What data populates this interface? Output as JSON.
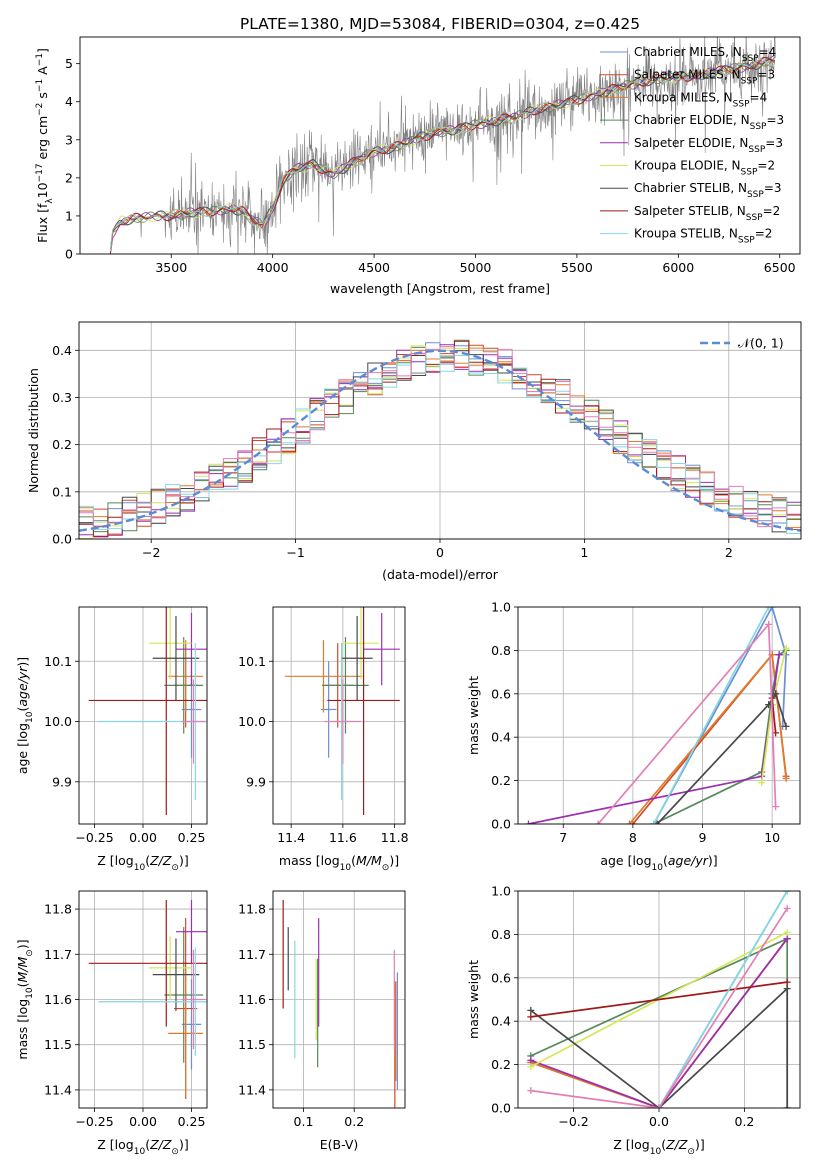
{
  "figure": {
    "title": "PLATE=1380, MJD=53084, FIBERID=0304, z=0.425"
  },
  "colors": {
    "data": "#808080",
    "Chabrier MILES": "#6b8fd6",
    "Salpeter MILES": "#d14a28",
    "Kroupa MILES": "#e07b2c",
    "Chabrier ELODIE": "#55885a",
    "Salpeter ELODIE": "#9b2fb0",
    "Kroupa ELODIE": "#d6e65a",
    "Chabrier STELIB": "#484848",
    "Salpeter STELIB": "#a11a1a",
    "Kroupa STELIB": "#85d8e2",
    "Pink": "#e37fb5",
    "normal": "#5b8bd8"
  },
  "chart_data": [
    {
      "id": "spectrum",
      "type": "line",
      "xlabel": "wavelength [Angstrom, rest frame]",
      "ylabel_parts": [
        "Flux [f",
        "λ",
        "10",
        "−17",
        " erg cm",
        "−2",
        " s",
        "−1",
        " A",
        "−1",
        "]"
      ],
      "xlim": [
        3050,
        6600
      ],
      "ylim": [
        0,
        5.7
      ],
      "xticks": [
        "3500",
        "4000",
        "4500",
        "5000",
        "5500",
        "6000",
        "6500"
      ],
      "xtick_values": [
        3500,
        4000,
        4500,
        5000,
        5500,
        6000,
        6500
      ],
      "yticks": [
        "0",
        "1",
        "2",
        "3",
        "4",
        "5"
      ],
      "ytick_values": [
        0,
        1,
        2,
        3,
        4,
        5
      ],
      "legend_position": "upper-right",
      "legend": [
        {
          "name": "Chabrier MILES, N",
          "sub": "SSP",
          "suffix": "=4"
        },
        {
          "name": "Salpeter MILES, N",
          "sub": "SSP",
          "suffix": "=3"
        },
        {
          "name": "Kroupa MILES, N",
          "sub": "SSP",
          "suffix": "=4"
        },
        {
          "name": "Chabrier ELODIE, N",
          "sub": "SSP",
          "suffix": "=3"
        },
        {
          "name": "Salpeter ELODIE, N",
          "sub": "SSP",
          "suffix": "=3"
        },
        {
          "name": "Kroupa ELODIE, N",
          "sub": "SSP",
          "suffix": "=2"
        },
        {
          "name": "Chabrier STELIB, N",
          "sub": "SSP",
          "suffix": "=3"
        },
        {
          "name": "Salpeter STELIB, N",
          "sub": "SSP",
          "suffix": "=2"
        },
        {
          "name": "Kroupa STELIB, N",
          "sub": "SSP",
          "suffix": "=2"
        }
      ],
      "model_continuum": [
        [
          3200,
          0
        ],
        [
          3210,
          0.55
        ],
        [
          3250,
          0.85
        ],
        [
          3300,
          0.92
        ],
        [
          3400,
          0.98
        ],
        [
          3500,
          1.02
        ],
        [
          3600,
          1.08
        ],
        [
          3700,
          1.12
        ],
        [
          3800,
          1.2
        ],
        [
          3850,
          1.12
        ],
        [
          3900,
          0.9
        ],
        [
          3950,
          0.75
        ],
        [
          4000,
          1.2
        ],
        [
          4050,
          1.9
        ],
        [
          4100,
          2.2
        ],
        [
          4200,
          2.35
        ],
        [
          4300,
          2.1
        ],
        [
          4400,
          2.4
        ],
        [
          4500,
          2.7
        ],
        [
          4600,
          2.8
        ],
        [
          4700,
          3.0
        ],
        [
          4800,
          3.2
        ],
        [
          4900,
          3.25
        ],
        [
          5000,
          3.4
        ],
        [
          5100,
          3.5
        ],
        [
          5200,
          3.6
        ],
        [
          5300,
          3.8
        ],
        [
          5400,
          3.9
        ],
        [
          5500,
          4.05
        ],
        [
          5600,
          4.2
        ],
        [
          5700,
          4.35
        ],
        [
          5800,
          4.5
        ],
        [
          5900,
          4.6
        ],
        [
          6000,
          4.65
        ],
        [
          6100,
          4.7
        ],
        [
          6200,
          4.8
        ],
        [
          6300,
          4.9
        ],
        [
          6400,
          5.0
        ],
        [
          6480,
          5.1
        ]
      ]
    },
    {
      "id": "residuals",
      "type": "step",
      "xlabel": "(data-model)/error",
      "ylabel": "Normed distribution",
      "xlim": [
        -2.5,
        2.5
      ],
      "ylim": [
        0,
        0.46
      ],
      "grid": true,
      "xticks": [
        "−2",
        "−1",
        "0",
        "1",
        "2"
      ],
      "xtick_values": [
        -2,
        -1,
        0,
        1,
        2
      ],
      "yticks": [
        "0.0",
        "0.1",
        "0.2",
        "0.3",
        "0.4"
      ],
      "ytick_values": [
        0,
        0.1,
        0.2,
        0.3,
        0.4
      ],
      "legend": [
        "𝒩(0, 1)"
      ],
      "legend_position": "upper-right",
      "bin_width": 0.1
    },
    {
      "id": "age_vs_Z",
      "type": "errorbar",
      "xlabel_parts": [
        "Z [log",
        "10",
        "(",
        "Z/Z",
        "⊙",
        ")]"
      ],
      "ylabel_parts": [
        "age  [log",
        "10",
        "(",
        "age/yr",
        ")]"
      ],
      "xlim": [
        -0.33,
        0.33
      ],
      "ylim": [
        9.83,
        10.19
      ],
      "grid": true,
      "xticks": [
        "−0.25",
        "0.00",
        "0.25"
      ],
      "xtick_values": [
        -0.25,
        0,
        0.25
      ],
      "yticks": [
        "9.9",
        "10.0",
        "10.1"
      ],
      "ytick_values": [
        9.9,
        10.0,
        10.1
      ],
      "points": [
        {
          "series": "Chabrier MILES",
          "x": 0.25,
          "xerr": 0.05,
          "y": 10.02,
          "yerr": 0.08
        },
        {
          "series": "Salpeter MILES",
          "x": 0.22,
          "xerr": 0.06,
          "y": 10.06,
          "yerr": 0.07
        },
        {
          "series": "Kroupa MILES",
          "x": 0.22,
          "xerr": 0.09,
          "y": 10.075,
          "yerr": 0.06
        },
        {
          "series": "Chabrier ELODIE",
          "x": 0.21,
          "xerr": 0.1,
          "y": 10.06,
          "yerr": 0.08
        },
        {
          "series": "Salpeter ELODIE",
          "x": 0.25,
          "xerr": 0.08,
          "y": 10.12,
          "yerr": 0.06
        },
        {
          "series": "Kroupa ELODIE",
          "x": 0.14,
          "xerr": 0.11,
          "y": 10.13,
          "yerr": 0.06
        },
        {
          "series": "Chabrier STELIB",
          "x": 0.17,
          "xerr": 0.12,
          "y": 10.105,
          "yerr": 0.07
        },
        {
          "series": "Salpeter STELIB",
          "x": 0.12,
          "xerr": 0.4,
          "y": 10.035,
          "yerr": 0.19
        },
        {
          "series": "Kroupa STELIB",
          "x": 0.27,
          "xerr": 0.5,
          "y": 10.0,
          "yerr": 0.13
        },
        {
          "series": "Pink",
          "x": 0.26,
          "xerr": 0.06,
          "y": 10.0,
          "yerr": 0.07
        }
      ]
    },
    {
      "id": "age_vs_mass",
      "type": "errorbar",
      "xlabel_parts": [
        "mass [log",
        "10",
        "(",
        "M/M",
        "⊙",
        ")]"
      ],
      "xlim": [
        11.33,
        11.84
      ],
      "ylim": [
        9.83,
        10.19
      ],
      "grid": true,
      "xticks": [
        "11.4",
        "11.6",
        "11.8"
      ],
      "xtick_values": [
        11.4,
        11.6,
        11.8
      ],
      "yticks": [
        "9.9",
        "10.0",
        "10.1"
      ],
      "ytick_values": [
        9.9,
        10.0,
        10.1
      ],
      "points": [
        {
          "series": "Chabrier MILES",
          "x": 11.545,
          "xerr": 0.03,
          "y": 10.02,
          "yerr": 0.08
        },
        {
          "series": "Salpeter MILES",
          "x": 11.58,
          "xerr": 0.06,
          "y": 10.06,
          "yerr": 0.07
        },
        {
          "series": "Kroupa MILES",
          "x": 11.525,
          "xerr": 0.15,
          "y": 10.075,
          "yerr": 0.06
        },
        {
          "series": "Chabrier ELODIE",
          "x": 11.61,
          "xerr": 0.09,
          "y": 10.06,
          "yerr": 0.08
        },
        {
          "series": "Salpeter ELODIE",
          "x": 11.75,
          "xerr": 0.07,
          "y": 10.12,
          "yerr": 0.06
        },
        {
          "series": "Kroupa ELODIE",
          "x": 11.67,
          "xerr": 0.07,
          "y": 10.13,
          "yerr": 0.06
        },
        {
          "series": "Chabrier STELIB",
          "x": 11.655,
          "xerr": 0.06,
          "y": 10.105,
          "yerr": 0.07
        },
        {
          "series": "Salpeter STELIB",
          "x": 11.68,
          "xerr": 0.14,
          "y": 10.035,
          "yerr": 0.19
        },
        {
          "series": "Kroupa STELIB",
          "x": 11.595,
          "xerr": 0.04,
          "y": 10.0,
          "yerr": 0.13
        },
        {
          "series": "Pink",
          "x": 11.6,
          "xerr": 0.07,
          "y": 10.0,
          "yerr": 0.07
        }
      ]
    },
    {
      "id": "weight_vs_age",
      "type": "line",
      "xlabel_parts": [
        "age  [log",
        "10",
        "(",
        "age/yr",
        ")]"
      ],
      "ylabel": "mass weight",
      "xlim": [
        6.35,
        10.4
      ],
      "ylim": [
        0,
        1.0
      ],
      "grid": true,
      "xticks": [
        "7",
        "8",
        "9",
        "10"
      ],
      "xtick_values": [
        7,
        8,
        9,
        10
      ],
      "yticks": [
        "0.0",
        "0.2",
        "0.4",
        "0.6",
        "0.8",
        "1.0"
      ],
      "ytick_values": [
        0,
        0.2,
        0.4,
        0.6,
        0.8,
        1.0
      ],
      "series": [
        {
          "name": "Chabrier MILES",
          "x": [
            8.3,
            10.0,
            10.2,
            10.15
          ],
          "y": [
            0,
            1.0,
            0.78,
            0.45
          ]
        },
        {
          "name": "Salpeter MILES",
          "x": [
            8.0,
            10.0,
            10.2
          ],
          "y": [
            0,
            0.78,
            0.22
          ]
        },
        {
          "name": "Kroupa MILES",
          "x": [
            7.95,
            10.0,
            10.2
          ],
          "y": [
            0,
            0.78,
            0.21
          ]
        },
        {
          "name": "Chabrier ELODIE",
          "x": [
            8.3,
            9.85,
            10.0,
            10.1,
            10.2
          ],
          "y": [
            0,
            0.24,
            0.6,
            0.78,
            0.8
          ]
        },
        {
          "name": "Salpeter ELODIE",
          "x": [
            6.5,
            9.85,
            10.0,
            10.1
          ],
          "y": [
            0,
            0.22,
            0.55,
            0.78
          ]
        },
        {
          "name": "Kroupa ELODIE",
          "x": [
            9.85,
            10.0,
            10.2
          ],
          "y": [
            0.19,
            0.55,
            0.81
          ]
        },
        {
          "name": "Chabrier STELIB",
          "x": [
            8.35,
            9.95,
            10.05,
            10.2
          ],
          "y": [
            0,
            0.55,
            0.6,
            0.45
          ]
        },
        {
          "name": "Salpeter STELIB",
          "x": [
            10.0,
            10.05
          ],
          "y": [
            0.58,
            0.42
          ]
        },
        {
          "name": "Kroupa STELIB",
          "x": [
            8.3,
            9.95
          ],
          "y": [
            0,
            1.0
          ]
        },
        {
          "name": "Pink",
          "x": [
            7.5,
            9.95,
            10.05
          ],
          "y": [
            0,
            0.92,
            0.08
          ]
        }
      ]
    },
    {
      "id": "mass_vs_Z",
      "type": "errorbar",
      "xlabel_parts": [
        "Z [log",
        "10",
        "(",
        "Z/Z",
        "⊙",
        ")]"
      ],
      "ylabel_parts": [
        "mass [log",
        "10",
        "(",
        "M/M",
        "⊙",
        ")]"
      ],
      "xlim": [
        -0.33,
        0.33
      ],
      "ylim": [
        11.36,
        11.84
      ],
      "grid": true,
      "xticks": [
        "−0.25",
        "0.00",
        "0.25"
      ],
      "xtick_values": [
        -0.25,
        0,
        0.25
      ],
      "yticks": [
        "11.4",
        "11.5",
        "11.6",
        "11.7",
        "11.8"
      ],
      "ytick_values": [
        11.4,
        11.5,
        11.6,
        11.7,
        11.8
      ],
      "points": [
        {
          "series": "Chabrier MILES",
          "x": 0.25,
          "xerr": 0.05,
          "y": 11.545,
          "yerr": 0.1
        },
        {
          "series": "Salpeter MILES",
          "x": 0.22,
          "xerr": 0.06,
          "y": 11.58,
          "yerr": 0.2
        },
        {
          "series": "Kroupa MILES",
          "x": 0.22,
          "xerr": 0.09,
          "y": 11.525,
          "yerr": 0.14
        },
        {
          "series": "Chabrier ELODIE",
          "x": 0.21,
          "xerr": 0.1,
          "y": 11.61,
          "yerr": 0.15
        },
        {
          "series": "Salpeter ELODIE",
          "x": 0.25,
          "xerr": 0.08,
          "y": 11.75,
          "yerr": 0.07
        },
        {
          "series": "Kroupa ELODIE",
          "x": 0.14,
          "xerr": 0.11,
          "y": 11.67,
          "yerr": 0.07
        },
        {
          "series": "Chabrier STELIB",
          "x": 0.17,
          "xerr": 0.12,
          "y": 11.655,
          "yerr": 0.08
        },
        {
          "series": "Salpeter STELIB",
          "x": 0.12,
          "xerr": 0.4,
          "y": 11.68,
          "yerr": 0.14
        },
        {
          "series": "Kroupa STELIB",
          "x": 0.27,
          "xerr": 0.5,
          "y": 11.595,
          "yerr": 0.12
        },
        {
          "series": "Pink",
          "x": 0.26,
          "xerr": 0.06,
          "y": 11.6,
          "yerr": 0.11
        }
      ]
    },
    {
      "id": "mass_vs_ebv",
      "type": "errorbar",
      "xlabel": "E(B-V)",
      "xlim": [
        0.04,
        0.3
      ],
      "ylim": [
        11.36,
        11.84
      ],
      "grid": true,
      "xticks": [
        "0.1",
        "0.2"
      ],
      "xtick_values": [
        0.1,
        0.2
      ],
      "yticks": [
        "11.4",
        "11.5",
        "11.6",
        "11.7",
        "11.8"
      ],
      "ytick_values": [
        11.4,
        11.5,
        11.6,
        11.7,
        11.8
      ],
      "points": [
        {
          "series": "Chabrier MILES",
          "x": 0.285,
          "xerr": 0,
          "y": 11.53,
          "yerr": 0.13
        },
        {
          "series": "Salpeter MILES",
          "x": 0.28,
          "xerr": 0,
          "y": 11.5,
          "yerr": 0.14
        },
        {
          "series": "Kroupa MILES",
          "x": 0.282,
          "xerr": 0,
          "y": 11.53,
          "yerr": 0.11
        },
        {
          "series": "Chabrier ELODIE",
          "x": 0.128,
          "xerr": 0,
          "y": 11.57,
          "yerr": 0.12
        },
        {
          "series": "Salpeter ELODIE",
          "x": 0.13,
          "xerr": 0,
          "y": 11.66,
          "yerr": 0.12
        },
        {
          "series": "Kroupa ELODIE",
          "x": 0.125,
          "xerr": 0,
          "y": 11.6,
          "yerr": 0.09
        },
        {
          "series": "Chabrier STELIB",
          "x": 0.07,
          "xerr": 0,
          "y": 11.69,
          "yerr": 0.07
        },
        {
          "series": "Salpeter STELIB",
          "x": 0.06,
          "xerr": 0,
          "y": 11.7,
          "yerr": 0.12
        },
        {
          "series": "Kroupa STELIB",
          "x": 0.083,
          "xerr": 0,
          "y": 11.6,
          "yerr": 0.13
        },
        {
          "series": "Pink",
          "x": 0.279,
          "xerr": 0,
          "y": 11.6,
          "yerr": 0.11
        }
      ]
    },
    {
      "id": "weight_vs_Z",
      "type": "line",
      "xlabel_parts": [
        "Z [log",
        "10",
        "(",
        "Z/Z",
        "⊙",
        ")]"
      ],
      "ylabel": "mass weight",
      "xlim": [
        -0.33,
        0.33
      ],
      "ylim": [
        0,
        1.0
      ],
      "grid": true,
      "xticks": [
        "−0.2",
        "0.0",
        "0.2"
      ],
      "xtick_values": [
        -0.2,
        0,
        0.2
      ],
      "yticks": [
        "0.0",
        "0.2",
        "0.4",
        "0.6",
        "0.8",
        "1.0"
      ],
      "ytick_values": [
        0,
        0.2,
        0.4,
        0.6,
        0.8,
        1.0
      ],
      "series": [
        {
          "name": "Chabrier MILES",
          "x": [
            0.0,
            0.3
          ],
          "y": [
            0,
            1.0
          ]
        },
        {
          "name": "Salpeter MILES",
          "x": [
            -0.3,
            0.0,
            0.3
          ],
          "y": [
            0.21,
            0,
            0.78
          ]
        },
        {
          "name": "Kroupa MILES",
          "x": [
            -0.3,
            0.0,
            0.3
          ],
          "y": [
            0.21,
            0,
            0.78
          ]
        },
        {
          "name": "Chabrier ELODIE",
          "x": [
            -0.3,
            0.3,
            0.3
          ],
          "y": [
            0.24,
            0.78,
            0
          ]
        },
        {
          "name": "Salpeter ELODIE",
          "x": [
            -0.3,
            0.0,
            0.3
          ],
          "y": [
            0.22,
            0,
            0.78
          ]
        },
        {
          "name": "Kroupa ELODIE",
          "x": [
            -0.3,
            0.3
          ],
          "y": [
            0.19,
            0.81
          ]
        },
        {
          "name": "Chabrier STELIB",
          "x": [
            -0.3,
            0.0,
            0.3,
            0.3
          ],
          "y": [
            0.45,
            0,
            0.55,
            0
          ]
        },
        {
          "name": "Salpeter STELIB",
          "x": [
            -0.3,
            0.3
          ],
          "y": [
            0.42,
            0.58
          ]
        },
        {
          "name": "Kroupa STELIB",
          "x": [
            0.0,
            0.3
          ],
          "y": [
            0,
            1.0
          ]
        },
        {
          "name": "Pink",
          "x": [
            -0.3,
            0.0,
            0.3
          ],
          "y": [
            0.08,
            0,
            0.92
          ]
        }
      ]
    }
  ]
}
